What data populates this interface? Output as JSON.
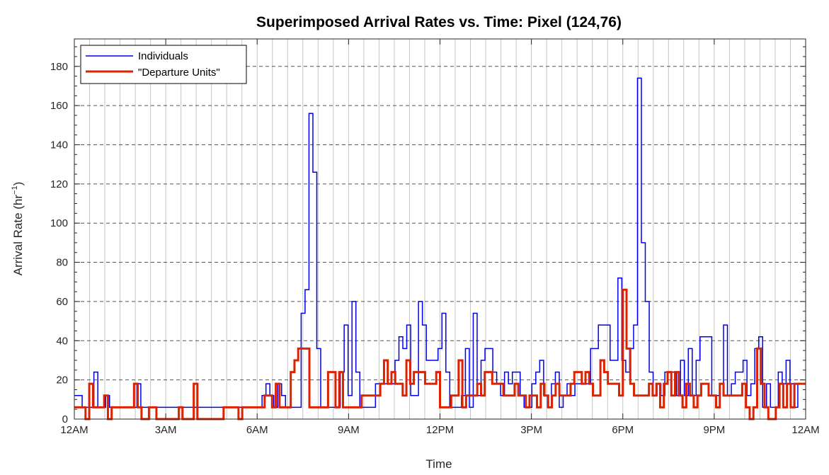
{
  "chart_data": {
    "type": "line",
    "title": "Superimposed Arrival Rates vs. Time: Pixel (124,76)",
    "xlabel": "Time",
    "ylabel": "Arrival Rate (hr",
    "ylabel_sup": "−1",
    "ylabel_end": ")",
    "x_unit": "hours since 12AM",
    "xlim": [
      0,
      24
    ],
    "ylim": [
      0,
      194
    ],
    "x_ticks": [
      {
        "value": 0,
        "label": "12AM"
      },
      {
        "value": 3,
        "label": "3AM"
      },
      {
        "value": 6,
        "label": "6AM"
      },
      {
        "value": 9,
        "label": "9AM"
      },
      {
        "value": 12,
        "label": "12PM"
      },
      {
        "value": 15,
        "label": "3PM"
      },
      {
        "value": 18,
        "label": "6PM"
      },
      {
        "value": 21,
        "label": "9PM"
      },
      {
        "value": 24,
        "label": "12AM"
      }
    ],
    "y_ticks": [
      0,
      20,
      40,
      60,
      80,
      100,
      120,
      140,
      160,
      180
    ],
    "grid": {
      "x_minor_step": 0.5,
      "y_dashed_step": 20
    },
    "legend_position": "top-left",
    "series": [
      {
        "name": "Individuals",
        "color": "#0000ee",
        "values": [
          12,
          12,
          6,
          6,
          6,
          24,
          6,
          6,
          12,
          6,
          6,
          6,
          6,
          6,
          6,
          6,
          18,
          6,
          6,
          6,
          6,
          6,
          6,
          6,
          6,
          6,
          6,
          6,
          6,
          6,
          6,
          6,
          6,
          6,
          6,
          6,
          6,
          6,
          6,
          6,
          6,
          6,
          6,
          6,
          6,
          6,
          6,
          6,
          12,
          18,
          12,
          6,
          18,
          12,
          6,
          6,
          6,
          6,
          54,
          66,
          156,
          126,
          36,
          6,
          6,
          6,
          6,
          6,
          24,
          48,
          12,
          60,
          24,
          6,
          6,
          6,
          6,
          18,
          18,
          18,
          18,
          18,
          30,
          42,
          36,
          48,
          12,
          12,
          60,
          48,
          30,
          30,
          30,
          36,
          54,
          24,
          6,
          6,
          6,
          12,
          36,
          6,
          54,
          12,
          30,
          36,
          36,
          24,
          18,
          12,
          24,
          18,
          24,
          24,
          12,
          6,
          6,
          18,
          24,
          30,
          12,
          6,
          18,
          24,
          6,
          12,
          18,
          12,
          18,
          18,
          18,
          18,
          36,
          36,
          48,
          48,
          48,
          30,
          30,
          72,
          30,
          24,
          36,
          48,
          174,
          90,
          60,
          24,
          12,
          18,
          12,
          24,
          24,
          24,
          12,
          30,
          12,
          36,
          12,
          30,
          42,
          42,
          42,
          12,
          12,
          18,
          48,
          12,
          18,
          24,
          24,
          30,
          12,
          18,
          36,
          42,
          6,
          18,
          6,
          6,
          24,
          18,
          30,
          18,
          6,
          18,
          18
        ]
      },
      {
        "name": "\"Departure Units\"",
        "color": "#dd2200",
        "values": [
          6,
          6,
          6,
          0,
          18,
          6,
          6,
          6,
          12,
          0,
          6,
          6,
          6,
          6,
          6,
          6,
          18,
          6,
          0,
          0,
          6,
          6,
          0,
          0,
          0,
          0,
          0,
          0,
          6,
          0,
          0,
          0,
          18,
          0,
          0,
          0,
          0,
          0,
          0,
          0,
          6,
          6,
          6,
          6,
          0,
          6,
          6,
          6,
          6,
          6,
          6,
          12,
          12,
          6,
          18,
          6,
          6,
          6,
          24,
          30,
          36,
          36,
          36,
          6,
          6,
          6,
          6,
          6,
          24,
          24,
          6,
          24,
          6,
          6,
          6,
          6,
          6,
          12,
          12,
          12,
          12,
          12,
          18,
          30,
          18,
          24,
          18,
          18,
          12,
          30,
          18,
          24,
          24,
          24,
          18,
          18,
          18,
          24,
          6,
          6,
          6,
          12,
          12,
          30,
          6,
          12,
          12,
          12,
          18,
          12,
          24,
          24,
          18,
          18,
          18,
          12,
          12,
          12,
          18,
          12,
          12,
          6,
          12,
          12,
          6,
          18,
          12,
          6,
          12,
          18,
          12,
          12,
          12,
          18,
          24,
          24,
          18,
          24,
          18,
          12,
          12,
          30,
          24,
          18,
          18,
          18,
          12,
          66,
          36,
          18,
          12,
          12,
          12,
          12,
          18,
          12,
          18,
          6,
          18,
          24,
          12,
          24,
          12,
          6,
          18,
          12,
          6,
          12,
          18,
          18,
          12,
          12,
          6,
          18,
          12,
          12,
          12,
          12,
          12,
          18,
          6,
          0,
          6,
          36,
          18,
          6,
          0,
          0,
          6,
          18,
          6,
          18,
          6,
          18,
          18,
          18
        ]
      }
    ]
  }
}
